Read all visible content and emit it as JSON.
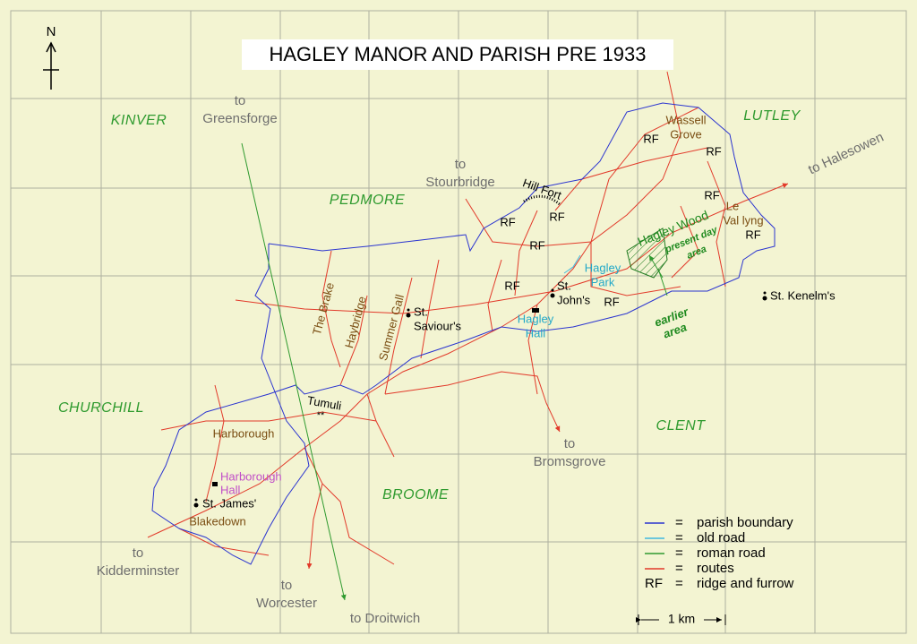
{
  "title": "HAGLEY MANOR AND PARISH PRE 1933",
  "compass": "N",
  "parishes": [
    "KINVER",
    "LUTLEY",
    "PEDMORE",
    "CHURCHILL",
    "CLENT",
    "BROOME"
  ],
  "destinations": [
    [
      "to",
      "Greensforge"
    ],
    [
      "to",
      "Stourbridge"
    ],
    [
      "to Halesowen"
    ],
    [
      "to",
      "Bromsgrove"
    ],
    [
      "to",
      "Kidderminster"
    ],
    [
      "to",
      "Worcester"
    ],
    [
      "to Droitwich"
    ]
  ],
  "places": {
    "wassell_grove": [
      "Wassell",
      "Grove"
    ],
    "le_vallyng": [
      "Le",
      "Val lyng"
    ],
    "hagley_wood": "Hagley Wood",
    "present_day_area": [
      "present day",
      "area"
    ],
    "earlier_area": [
      "earlier",
      "area"
    ],
    "hagley_park": [
      "Hagley",
      "Park"
    ],
    "hagley_hall": [
      "Hagley",
      "Hall"
    ],
    "hill_fort": "Hill Fort",
    "the_brake": "The Brake",
    "haybridge": "Haybridge",
    "summer_gall": "Summer Gall",
    "tumuli": "Tumuli",
    "harborough": "Harborough",
    "harborough_hall": [
      "Harborough",
      "Hall"
    ],
    "blakedown": "Blakedown"
  },
  "churches": [
    [
      "St.",
      "John's"
    ],
    [
      "St.",
      "Saviour's"
    ],
    [
      "St. Kenelm's"
    ],
    [
      "St. James'"
    ]
  ],
  "rf_marks": [
    "RF",
    "RF",
    "RF",
    "RF",
    "RF",
    "RF",
    "RF",
    "RF",
    "RF"
  ],
  "legend": [
    {
      "color": "#2a34d0",
      "sign": "=",
      "label": "parish boundary"
    },
    {
      "color": "#3fb8e0",
      "sign": "=",
      "label": "old road"
    },
    {
      "color": "#2f9a2f",
      "sign": "=",
      "label": "roman road"
    },
    {
      "color": "#e23a2a",
      "sign": "=",
      "label": "routes"
    },
    {
      "key": "RF",
      "sign": "=",
      "label": "ridge and furrow"
    }
  ],
  "scale": "1 km"
}
